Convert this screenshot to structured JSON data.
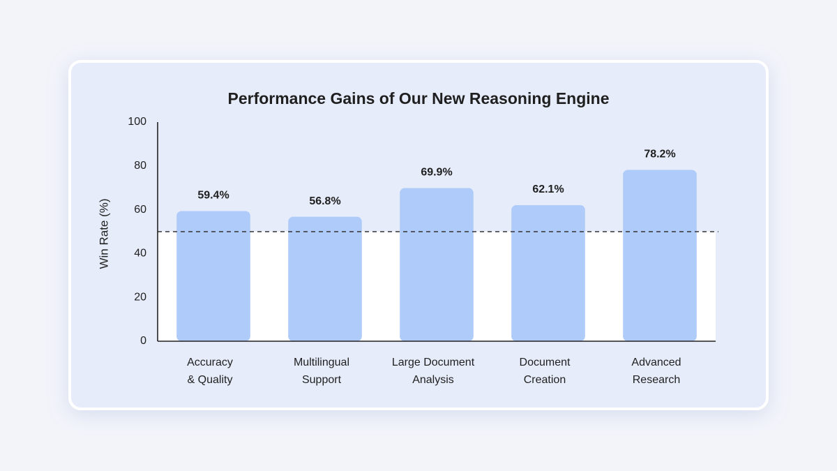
{
  "chart_data": {
    "type": "bar",
    "title": "Performance Gains of Our New Reasoning Engine",
    "y_label": "Win Rate (%)",
    "categories": [
      "Accuracy\n& Quality",
      "Multilingual\nSupport",
      "Large Document\nAnalysis",
      "Document\nCreation",
      "Advanced\nResearch"
    ],
    "values": [
      59.4,
      56.8,
      69.9,
      62.1,
      78.2
    ],
    "value_labels": [
      "59.4%",
      "56.8%",
      "69.9%",
      "62.1%",
      "78.2%"
    ],
    "color": "#aecbfa",
    "ylim": [
      0,
      100
    ],
    "yticks": [
      0,
      20,
      40,
      60,
      80,
      100
    ],
    "reference_line": 50,
    "grid": false
  }
}
